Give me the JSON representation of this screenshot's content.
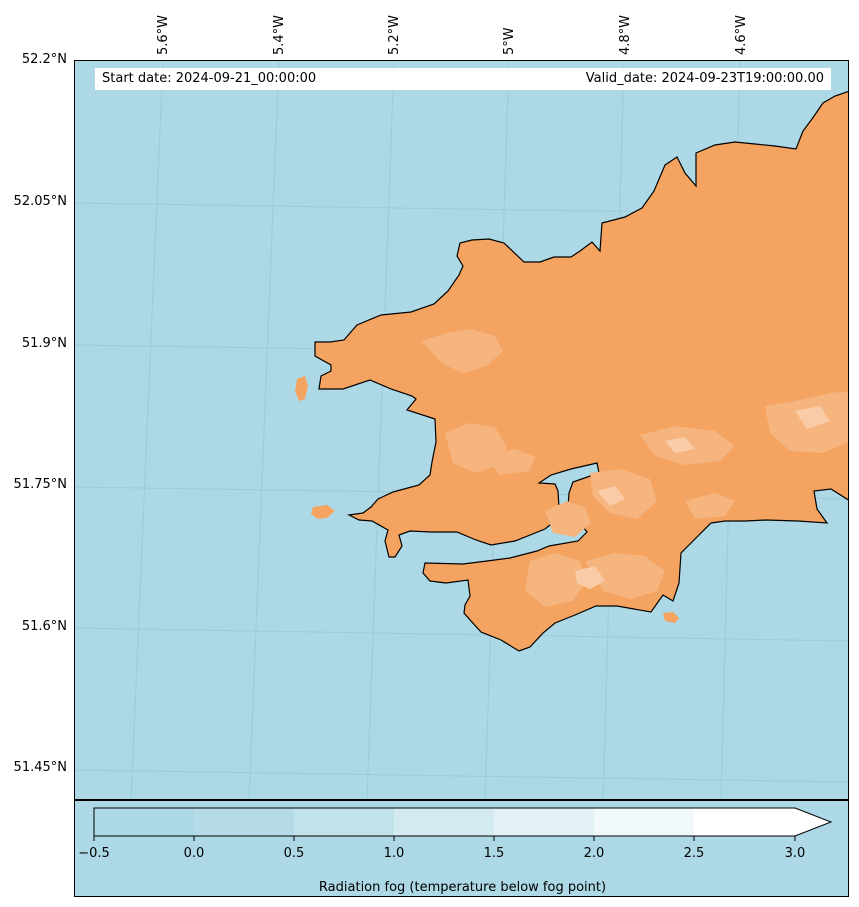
{
  "info": {
    "start_date": "Start date: 2024-09-21_00:00:00",
    "valid_date": "Valid_date: 2024-09-23T19:00:00.00"
  },
  "latitude_labels": [
    "52.2°N",
    "52.05°N",
    "51.9°N",
    "51.75°N",
    "51.6°N",
    "51.45°N"
  ],
  "longitude_labels": [
    "5.6°W",
    "5.4°W",
    "5.2°W",
    "5°W",
    "4.8°W",
    "4.6°W"
  ],
  "colorbar": {
    "label": "Radiation fog (temperature below fog point)",
    "ticks": [
      "−0.5",
      "0.0",
      "0.5",
      "1.0",
      "1.5",
      "2.0",
      "2.5",
      "3.0"
    ],
    "colors": [
      "#add8e6",
      "#b5dbe8",
      "#c2e2ec",
      "#d3eaf1",
      "#e2f1f6",
      "#f0f8fa",
      "#ffffff"
    ]
  },
  "colors": {
    "sea": "#add8e6",
    "land": "#f4a460",
    "land_light": "#f6b47e",
    "land_lighter": "#f9cba7"
  }
}
